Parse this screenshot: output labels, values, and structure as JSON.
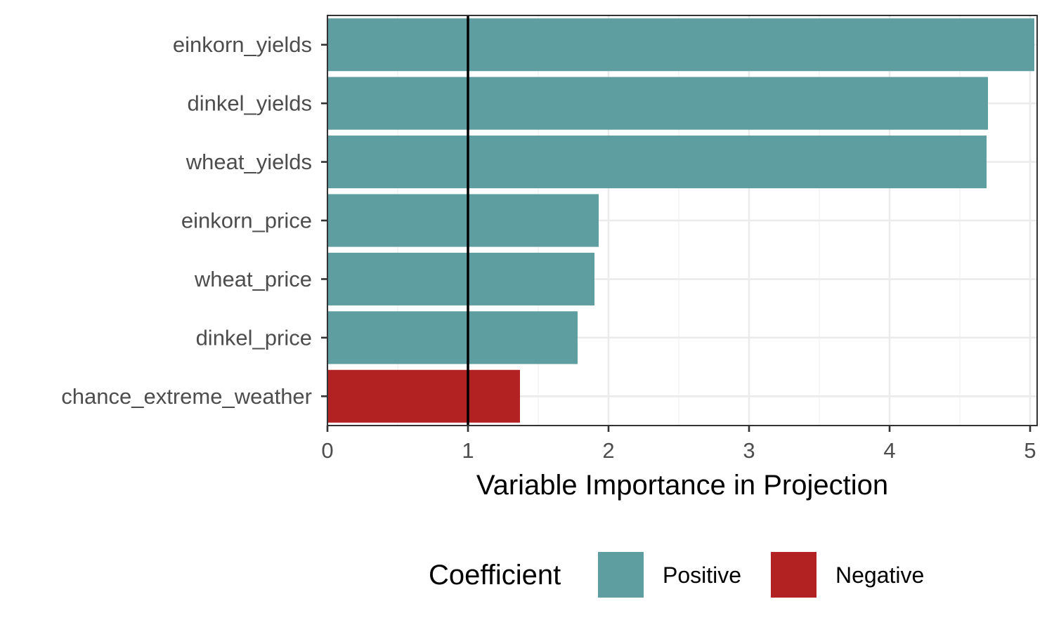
{
  "chart_data": {
    "type": "bar",
    "orientation": "horizontal",
    "categories": [
      "einkorn_yields",
      "dinkel_yields",
      "wheat_yields",
      "einkorn_price",
      "wheat_price",
      "dinkel_price",
      "chance_extreme_weather"
    ],
    "values": [
      5.03,
      4.7,
      4.69,
      1.93,
      1.9,
      1.78,
      1.37
    ],
    "coefficient": [
      "Positive",
      "Positive",
      "Positive",
      "Positive",
      "Positive",
      "Positive",
      "Negative"
    ],
    "xlabel": "Variable Importance in Projection",
    "ylabel": "",
    "xlim": [
      0,
      5.05
    ],
    "xticks": [
      0,
      1,
      2,
      3,
      4,
      5
    ],
    "reference_line": {
      "x": 1,
      "color": "#000000"
    },
    "grid": true,
    "legend": {
      "title": "Coefficient",
      "position": "bottom",
      "entries": [
        {
          "label": "Positive",
          "color": "#5f9ea0"
        },
        {
          "label": "Negative",
          "color": "#b22222"
        }
      ]
    },
    "colors": {
      "Positive": "#5f9ea0",
      "Negative": "#b22222"
    }
  }
}
